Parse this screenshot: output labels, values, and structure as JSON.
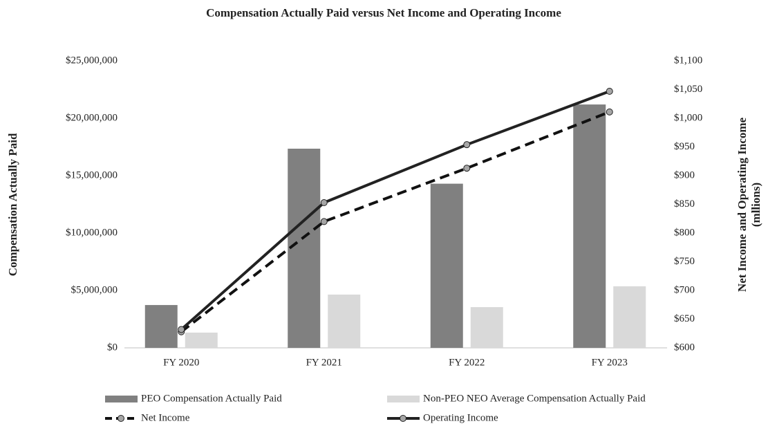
{
  "chart_data": {
    "type": "bar",
    "title": "Compensation Actually Paid versus Net Income and Operating Income",
    "ylabel": "Compensation Actually Paid",
    "y2label": [
      "Net Income and Operating Income",
      "(mllions)"
    ],
    "categories": [
      "FY 2020",
      "FY 2021",
      "FY 2022",
      "FY 2023"
    ],
    "series": [
      {
        "name": "PEO Compensation Actually Paid",
        "type": "bar",
        "color": "#808080",
        "values": [
          3730000,
          17350000,
          14300000,
          21200000
        ]
      },
      {
        "name": "Non-PEO NEO Average Compensation Actually Paid",
        "type": "bar",
        "color": "#d9d9d9",
        "values": [
          1330000,
          4640000,
          3550000,
          5360000
        ]
      },
      {
        "name": "Net Income",
        "type": "line",
        "axis": "y2",
        "color": "#111111",
        "dashed": true,
        "values": [
          628,
          820,
          913,
          1011
        ]
      },
      {
        "name": "Operating Income",
        "type": "line",
        "axis": "y2",
        "color": "#222222",
        "dashed": false,
        "values": [
          632,
          853,
          954,
          1047
        ]
      }
    ],
    "ylim": [
      0,
      25000000
    ],
    "yticks": [
      {
        "value": 0,
        "label": "$0"
      },
      {
        "value": 5000000,
        "label": "$5,000,000"
      },
      {
        "value": 10000000,
        "label": "$10,000,000"
      },
      {
        "value": 15000000,
        "label": "$15,000,000"
      },
      {
        "value": 20000000,
        "label": "$20,000,000"
      },
      {
        "value": 25000000,
        "label": "$25,000,000"
      }
    ],
    "y2lim": [
      600,
      1100
    ],
    "y2ticks": [
      {
        "value": 600,
        "label": "$600"
      },
      {
        "value": 650,
        "label": "$650"
      },
      {
        "value": 700,
        "label": "$700"
      },
      {
        "value": 750,
        "label": "$750"
      },
      {
        "value": 800,
        "label": "$800"
      },
      {
        "value": 850,
        "label": "$850"
      },
      {
        "value": 900,
        "label": "$900"
      },
      {
        "value": 950,
        "label": "$950"
      },
      {
        "value": 1000,
        "label": "$1,000"
      },
      {
        "value": 1050,
        "label": "$1,050"
      },
      {
        "value": 1100,
        "label": "$1,100"
      }
    ],
    "grid": false,
    "legend": "bottom"
  }
}
